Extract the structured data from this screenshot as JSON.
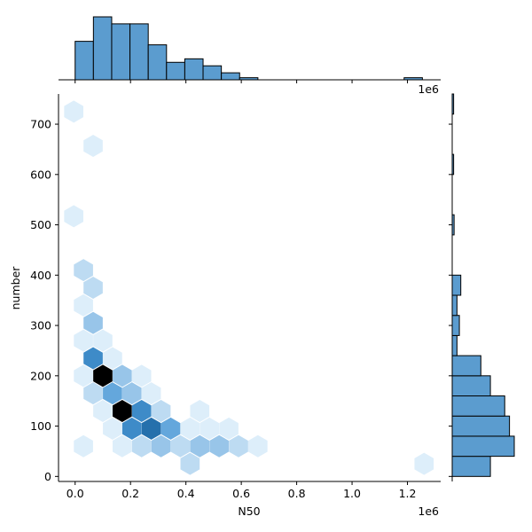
{
  "chart_data": {
    "type": "hexbin_jointplot",
    "xlabel": "N50",
    "ylabel": "number",
    "x_offset_label": "1e6",
    "top_offset_label": "1e6",
    "x_scale": 1000000,
    "xlim": [
      -0.06,
      1.32
    ],
    "ylim": [
      -10,
      760
    ],
    "x_ticks": [
      "0.0",
      "0.2",
      "0.4",
      "0.6",
      "0.8",
      "1.0",
      "1.2"
    ],
    "y_ticks": [
      "0",
      "100",
      "200",
      "300",
      "400",
      "500",
      "600",
      "700"
    ],
    "colors": {
      "hist": "#5b9ccf",
      "hex_light": "#ddeefa",
      "hex_dark": "#000000"
    },
    "hexbins": [
      {
        "x": -0.005,
        "y": 725,
        "count": 1
      },
      {
        "x": 0.065,
        "y": 657,
        "count": 1
      },
      {
        "x": -0.005,
        "y": 517,
        "count": 1
      },
      {
        "x": 0.03,
        "y": 410,
        "count": 2
      },
      {
        "x": 0.065,
        "y": 375,
        "count": 2
      },
      {
        "x": 0.03,
        "y": 340,
        "count": 1
      },
      {
        "x": 0.065,
        "y": 305,
        "count": 3
      },
      {
        "x": 0.03,
        "y": 270,
        "count": 1
      },
      {
        "x": 0.1,
        "y": 270,
        "count": 1
      },
      {
        "x": 0.065,
        "y": 235,
        "count": 5
      },
      {
        "x": 0.135,
        "y": 235,
        "count": 1
      },
      {
        "x": 0.03,
        "y": 200,
        "count": 1
      },
      {
        "x": 0.1,
        "y": 200,
        "count": 8
      },
      {
        "x": 0.17,
        "y": 200,
        "count": 3
      },
      {
        "x": 0.24,
        "y": 200,
        "count": 1
      },
      {
        "x": 0.065,
        "y": 165,
        "count": 2
      },
      {
        "x": 0.135,
        "y": 165,
        "count": 4
      },
      {
        "x": 0.205,
        "y": 165,
        "count": 3
      },
      {
        "x": 0.275,
        "y": 165,
        "count": 1
      },
      {
        "x": 0.1,
        "y": 130,
        "count": 1
      },
      {
        "x": 0.17,
        "y": 130,
        "count": 8
      },
      {
        "x": 0.24,
        "y": 130,
        "count": 5
      },
      {
        "x": 0.31,
        "y": 130,
        "count": 2
      },
      {
        "x": 0.45,
        "y": 130,
        "count": 1
      },
      {
        "x": 0.135,
        "y": 95,
        "count": 1
      },
      {
        "x": 0.205,
        "y": 95,
        "count": 5
      },
      {
        "x": 0.275,
        "y": 95,
        "count": 6
      },
      {
        "x": 0.345,
        "y": 95,
        "count": 4
      },
      {
        "x": 0.415,
        "y": 95,
        "count": 1
      },
      {
        "x": 0.485,
        "y": 95,
        "count": 1
      },
      {
        "x": 0.555,
        "y": 95,
        "count": 1
      },
      {
        "x": 0.03,
        "y": 60,
        "count": 1
      },
      {
        "x": 0.17,
        "y": 60,
        "count": 1
      },
      {
        "x": 0.24,
        "y": 60,
        "count": 2
      },
      {
        "x": 0.31,
        "y": 60,
        "count": 3
      },
      {
        "x": 0.38,
        "y": 60,
        "count": 2
      },
      {
        "x": 0.45,
        "y": 60,
        "count": 3
      },
      {
        "x": 0.52,
        "y": 60,
        "count": 3
      },
      {
        "x": 0.59,
        "y": 60,
        "count": 2
      },
      {
        "x": 0.66,
        "y": 60,
        "count": 1
      },
      {
        "x": 0.415,
        "y": 25,
        "count": 2
      },
      {
        "x": 1.26,
        "y": 25,
        "count": 1
      }
    ],
    "top_histogram": {
      "bin_edges": [
        0.0,
        0.066,
        0.132,
        0.198,
        0.264,
        0.33,
        0.396,
        0.462,
        0.528,
        0.594,
        0.66,
        0.726,
        0.792,
        0.858,
        0.924,
        0.99,
        1.056,
        1.122,
        1.188,
        1.254
      ],
      "counts": [
        11,
        18,
        16,
        16,
        10,
        5,
        6,
        4,
        2,
        0.6,
        0,
        0,
        0,
        0,
        0,
        0,
        0,
        0,
        0.6
      ]
    },
    "right_histogram": {
      "bin_edges": [
        0,
        40,
        80,
        120,
        160,
        200,
        240,
        280,
        320,
        360,
        400,
        440,
        480,
        520,
        560,
        600,
        640,
        680,
        720,
        760
      ],
      "counts": [
        8,
        13,
        12,
        11,
        8,
        6,
        1,
        1.5,
        1,
        1.8,
        0,
        0,
        0.4,
        0,
        0,
        0.3,
        0,
        0,
        0.3
      ]
    }
  }
}
